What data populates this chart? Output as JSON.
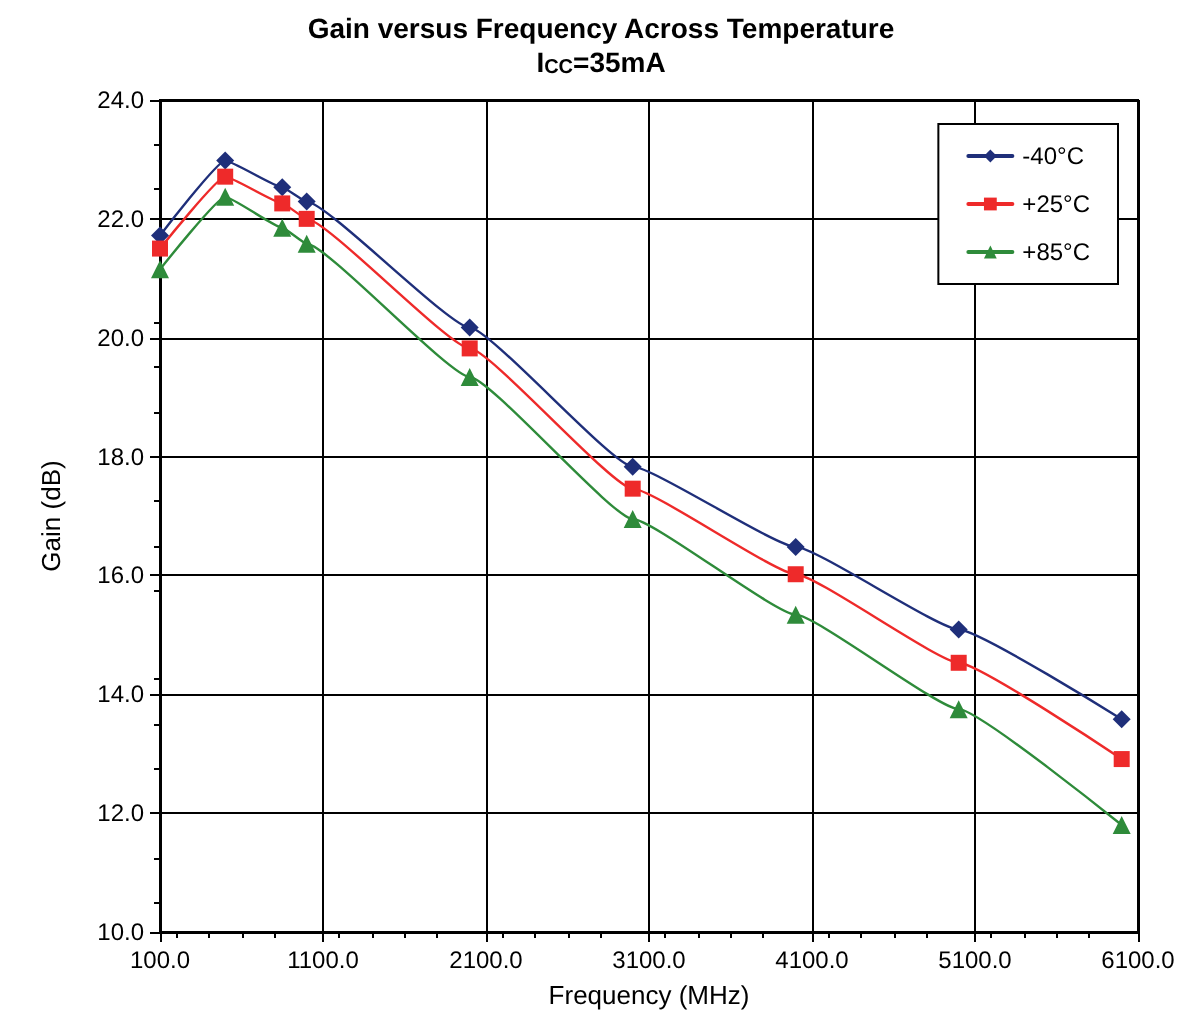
{
  "chart_data": {
    "type": "line",
    "title": "Gain versus Frequency Across Temperature",
    "subtitle": "I$_{CC}$=35mA",
    "xlabel": "Frequency (MHz)",
    "ylabel": "Gain (dB)",
    "x": [
      100,
      500,
      850,
      1000,
      2000,
      3000,
      4000,
      5000,
      6000
    ],
    "series": [
      {
        "name": "-40°C",
        "color": "#1f2f7a",
        "marker": "diamond",
        "values": [
          21.72,
          22.98,
          22.53,
          22.29,
          20.17,
          17.83,
          16.48,
          15.09,
          13.58
        ]
      },
      {
        "name": "+25°C",
        "color": "#ee2a2a",
        "marker": "square",
        "values": [
          21.5,
          22.71,
          22.26,
          22.0,
          19.82,
          17.46,
          16.02,
          14.53,
          12.91
        ]
      },
      {
        "name": "+85°C",
        "color": "#2e8b3a",
        "marker": "triangle",
        "values": [
          21.15,
          22.37,
          21.85,
          21.58,
          19.34,
          16.95,
          15.34,
          13.75,
          11.8
        ]
      }
    ],
    "xlim": [
      100,
      6100
    ],
    "xticks": [
      {
        "value": 100,
        "label": "100.0"
      },
      {
        "value": 1100,
        "label": "1100.0"
      },
      {
        "value": 2100,
        "label": "2100.0"
      },
      {
        "value": 3100,
        "label": "3100.0"
      },
      {
        "value": 4100,
        "label": "4100.0"
      },
      {
        "value": 5100,
        "label": "5100.0"
      },
      {
        "value": 6100,
        "label": "6100.0"
      }
    ],
    "ylim": [
      10,
      24
    ],
    "yticks": [
      {
        "value": 10,
        "label": "10.0"
      },
      {
        "value": 12,
        "label": "12.0"
      },
      {
        "value": 14,
        "label": "14.0"
      },
      {
        "value": 16,
        "label": "16.0"
      },
      {
        "value": 18,
        "label": "18.0"
      },
      {
        "value": 20,
        "label": "20.0"
      },
      {
        "value": 22,
        "label": "22.0"
      },
      {
        "value": 24,
        "label": "24.0"
      }
    ],
    "grid": true,
    "legend": "top right",
    "line_style": "solid"
  }
}
